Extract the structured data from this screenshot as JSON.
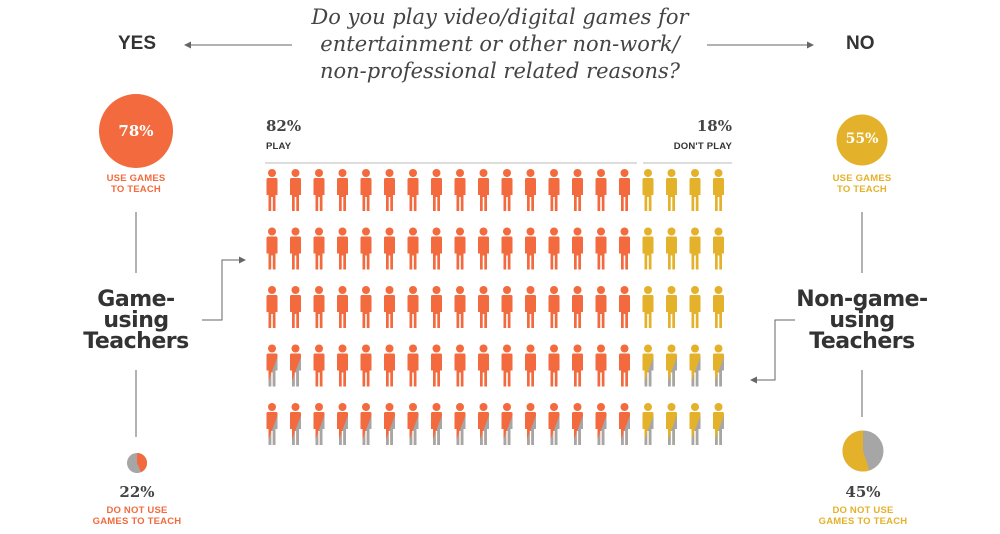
{
  "header": {
    "question_lines": [
      "Do you play video/digital games for",
      "entertainment or other non-work/",
      "non-professional related reasons?"
    ],
    "yes_label": "YES",
    "no_label": "NO"
  },
  "left_group": {
    "title_lines": [
      "Game-",
      "using",
      "Teachers"
    ],
    "use_pct": "78%",
    "use_label_lines": [
      "USE GAMES",
      "TO TEACH"
    ],
    "not_use_pct": "22%",
    "not_use_label_lines": [
      "DO NOT USE",
      "GAMES TO TEACH"
    ]
  },
  "right_group": {
    "title_lines": [
      "Non-game-",
      "using",
      "Teachers"
    ],
    "use_pct": "55%",
    "use_label_lines": [
      "USE GAMES",
      "TO TEACH"
    ],
    "not_use_pct": "45%",
    "not_use_label_lines": [
      "DO NOT USE",
      "GAMES TO TEACH"
    ]
  },
  "grid": {
    "play_pct": "82%",
    "play_label": "PLAY",
    "dont_play_pct": "18%",
    "dont_play_label": "DON'T PLAY"
  },
  "colors": {
    "play": "#f26a3d",
    "dont_play": "#e4b12a",
    "not_using": "#a6a6a6",
    "text": "#333333"
  },
  "chart_data": {
    "type": "pictograph",
    "icons_total": 100,
    "rows": 5,
    "columns": 20,
    "series": [
      {
        "name": "PLAY",
        "value": 82,
        "use_games_to_teach_pct": 78,
        "do_not_use_pct": 22
      },
      {
        "name": "DON'T PLAY",
        "value": 18,
        "use_games_to_teach_pct": 55,
        "do_not_use_pct": 45
      }
    ],
    "pie_charts": [
      {
        "group": "Game-using Teachers",
        "slices": [
          {
            "label": "USE GAMES TO TEACH",
            "value": 78
          },
          {
            "label": "DO NOT USE GAMES TO TEACH",
            "value": 22
          }
        ]
      },
      {
        "group": "Non-game-using Teachers",
        "slices": [
          {
            "label": "USE GAMES TO TEACH",
            "value": 55
          },
          {
            "label": "DO NOT USE GAMES TO TEACH",
            "value": 45
          }
        ]
      }
    ]
  }
}
